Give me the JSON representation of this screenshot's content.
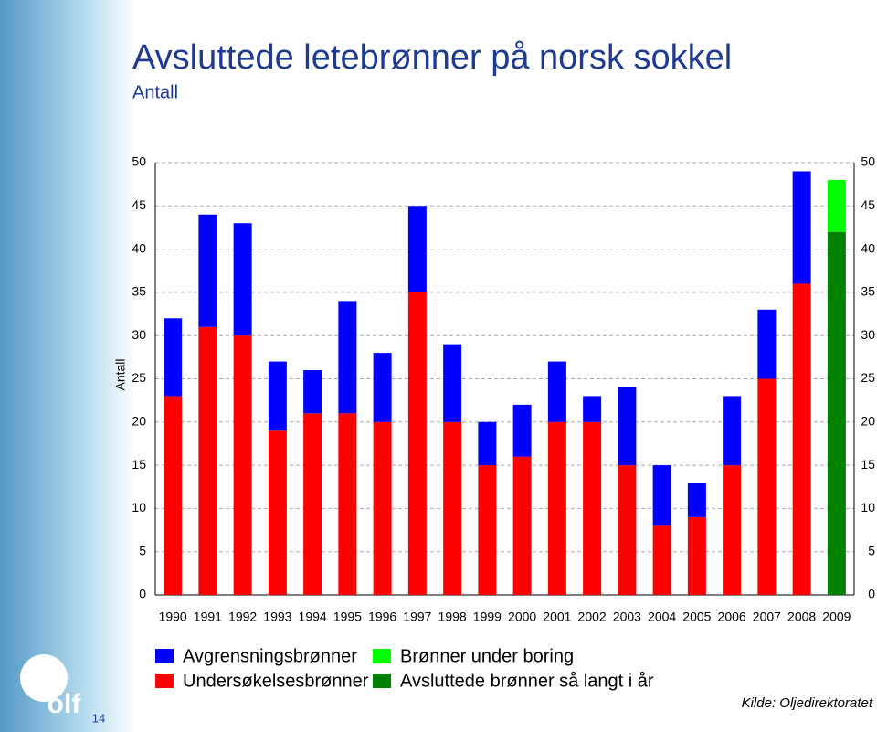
{
  "chart_data": {
    "type": "stacked_bar",
    "title": "Avsluttede letebrønner på norsk sokkel",
    "subtitle": "Antall",
    "ylabel": "Antall",
    "categories": [
      "1990",
      "1991",
      "1992",
      "1993",
      "1994",
      "1995",
      "1996",
      "1997",
      "1998",
      "1999",
      "2000",
      "2001",
      "2002",
      "2003",
      "2004",
      "2005",
      "2006",
      "2007",
      "2008",
      "2009"
    ],
    "series": [
      {
        "name": "Undersøkelsesbrønner",
        "color": "#ff0000",
        "values": [
          23,
          31,
          30,
          19,
          21,
          21,
          20,
          35,
          20,
          15,
          16,
          20,
          20,
          15,
          8,
          9,
          15,
          25,
          36,
          null
        ]
      },
      {
        "name": "Avgrensningsbrønner",
        "color": "#0000ff",
        "values": [
          9,
          13,
          13,
          8,
          5,
          13,
          8,
          10,
          9,
          5,
          6,
          7,
          3,
          9,
          7,
          4,
          8,
          8,
          13,
          null
        ]
      },
      {
        "name": "Avsluttede brønner så langt i år",
        "color": "#008000",
        "values": [
          null,
          null,
          null,
          null,
          null,
          null,
          null,
          null,
          null,
          null,
          null,
          null,
          null,
          null,
          null,
          null,
          null,
          null,
          null,
          42
        ]
      },
      {
        "name": "Brønner under boring",
        "color": "#00ff00",
        "values": [
          null,
          null,
          null,
          null,
          null,
          null,
          null,
          null,
          null,
          null,
          null,
          null,
          null,
          null,
          null,
          null,
          null,
          null,
          null,
          6
        ]
      }
    ],
    "ylim": [
      0,
      50
    ],
    "yticks": [
      0,
      5,
      10,
      15,
      20,
      25,
      30,
      35,
      40,
      45,
      50
    ],
    "grid": true,
    "source": "Kilde: Oljedirektoratet",
    "page_number": "14",
    "logo": "olf"
  }
}
